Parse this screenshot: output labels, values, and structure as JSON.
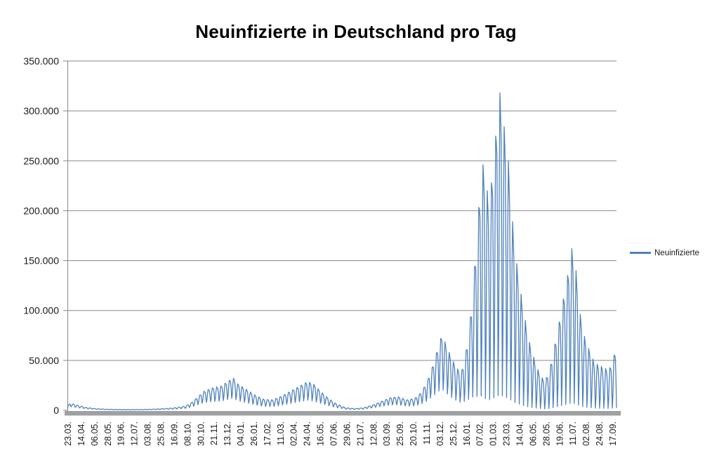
{
  "chart_data": {
    "type": "line",
    "title": "Neuinfizierte in Deutschland pro Tag",
    "legend": {
      "position": "right",
      "entries": [
        {
          "label": "Neuinfizierte",
          "color": "#4F81BD"
        }
      ]
    },
    "grid": true,
    "colors": {
      "line": "#4F81BD",
      "gridline": "#898989",
      "axis": "#898989",
      "axis_bar": "#9EA0A2",
      "tick_text": "#1a1a1a"
    },
    "y_axis": {
      "min": 0,
      "max": 350000,
      "tick_step": 50000,
      "tick_labels": [
        "0",
        "50.000",
        "100.000",
        "150.000",
        "200.000",
        "250.000",
        "300.000",
        "350.000"
      ]
    },
    "x_axis": {
      "tick_interval_points": 22,
      "tick_labels": [
        "23.03.",
        "14.04.",
        "06.05.",
        "28.05.",
        "19.06.",
        "12.07.",
        "03.08.",
        "25.08.",
        "16.09.",
        "08.10.",
        "30.10.",
        "21.11.",
        "13.12.",
        "04.01.",
        "26.01.",
        "17.02.",
        "11.03.",
        "02.04.",
        "24.04.",
        "16.05.",
        "07.06.",
        "29.06.",
        "21.07.",
        "12.08.",
        "03.09.",
        "25.09.",
        "20.10.",
        "11.11.",
        "03.12.",
        "25.12.",
        "16.01.",
        "07.02.",
        "01.03.",
        "23.03.",
        "14.04.",
        "06.05.",
        "28.05.",
        "19.06.",
        "11.07.",
        "02.08.",
        "24.08.",
        "17.09."
      ]
    },
    "series": [
      {
        "name": "Neuinfizierte",
        "color": "#4F81BD",
        "n_points": 910,
        "start_label": "23.03.",
        "end_label": "17.09.",
        "encoding": "daily value = envelope(day) * (ratio(day) + (1-ratio(day)) * weekly_shape[day mod 7]); envelope and ratio linearly interpolated between keypoints",
        "weekly_shape": [
          0.25,
          0.72,
          1.0,
          0.95,
          0.88,
          0.55,
          0.03
        ],
        "envelope_keypoints": [
          [
            0,
            3500
          ],
          [
            4,
            6900
          ],
          [
            10,
            6200
          ],
          [
            18,
            4800
          ],
          [
            30,
            3000
          ],
          [
            45,
            1800
          ],
          [
            65,
            1100
          ],
          [
            95,
            750
          ],
          [
            125,
            850
          ],
          [
            150,
            1400
          ],
          [
            175,
            2300
          ],
          [
            195,
            4200
          ],
          [
            205,
            7500
          ],
          [
            215,
            13000
          ],
          [
            226,
            19000
          ],
          [
            240,
            22500
          ],
          [
            255,
            24500
          ],
          [
            268,
            30000
          ],
          [
            274,
            33000
          ],
          [
            282,
            26500
          ],
          [
            295,
            21500
          ],
          [
            310,
            15500
          ],
          [
            325,
            11000
          ],
          [
            340,
            10500
          ],
          [
            355,
            14500
          ],
          [
            370,
            19500
          ],
          [
            385,
            24500
          ],
          [
            398,
            29000
          ],
          [
            408,
            26000
          ],
          [
            420,
            18500
          ],
          [
            432,
            12000
          ],
          [
            445,
            6500
          ],
          [
            460,
            2700
          ],
          [
            475,
            1700
          ],
          [
            490,
            2500
          ],
          [
            505,
            5200
          ],
          [
            520,
            9000
          ],
          [
            535,
            12800
          ],
          [
            548,
            13500
          ],
          [
            562,
            10500
          ],
          [
            575,
            12000
          ],
          [
            585,
            17500
          ],
          [
            595,
            28000
          ],
          [
            605,
            45000
          ],
          [
            613,
            62000
          ],
          [
            620,
            76000
          ],
          [
            628,
            64000
          ],
          [
            636,
            52000
          ],
          [
            645,
            42000
          ],
          [
            652,
            38000
          ],
          [
            658,
            52000
          ],
          [
            664,
            75000
          ],
          [
            670,
            110000
          ],
          [
            676,
            160000
          ],
          [
            682,
            212000
          ],
          [
            687,
            248000
          ],
          [
            692,
            238000
          ],
          [
            697,
            208000
          ],
          [
            702,
            228000
          ],
          [
            707,
            260000
          ],
          [
            712,
            297000
          ],
          [
            716,
            318000
          ],
          [
            720,
            298000
          ],
          [
            725,
            275000
          ],
          [
            730,
            250000
          ],
          [
            735,
            205000
          ],
          [
            740,
            165000
          ],
          [
            746,
            138000
          ],
          [
            752,
            112000
          ],
          [
            758,
            90000
          ],
          [
            764,
            70000
          ],
          [
            771,
            55000
          ],
          [
            778,
            42000
          ],
          [
            785,
            33000
          ],
          [
            791,
            30000
          ],
          [
            798,
            40000
          ],
          [
            805,
            60000
          ],
          [
            812,
            82000
          ],
          [
            819,
            105000
          ],
          [
            828,
            135000
          ],
          [
            835,
            162000
          ],
          [
            842,
            140000
          ],
          [
            848,
            100000
          ],
          [
            854,
            78000
          ],
          [
            860,
            66000
          ],
          [
            866,
            58000
          ],
          [
            872,
            48000
          ],
          [
            880,
            45000
          ],
          [
            888,
            43000
          ],
          [
            896,
            40000
          ],
          [
            902,
            48000
          ],
          [
            907,
            60000
          ],
          [
            909,
            62000
          ]
        ],
        "trough_ratio_keypoints": [
          [
            0,
            0.5
          ],
          [
            150,
            0.48
          ],
          [
            210,
            0.4
          ],
          [
            250,
            0.36
          ],
          [
            300,
            0.34
          ],
          [
            410,
            0.33
          ],
          [
            450,
            0.4
          ],
          [
            500,
            0.45
          ],
          [
            555,
            0.38
          ],
          [
            590,
            0.32
          ],
          [
            620,
            0.26
          ],
          [
            645,
            0.2
          ],
          [
            658,
            0.15
          ],
          [
            668,
            0.1
          ],
          [
            678,
            0.05
          ],
          [
            690,
            0.02
          ],
          [
            909,
            0.015
          ]
        ]
      }
    ]
  }
}
